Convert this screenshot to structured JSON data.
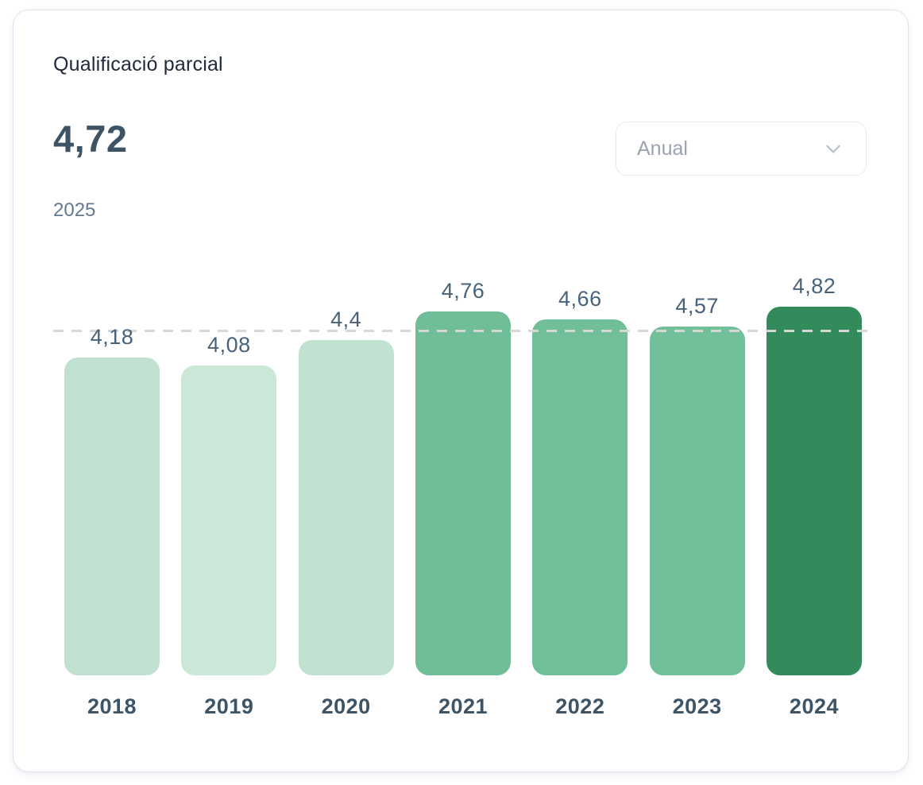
{
  "card": {
    "title": "Qualificació parcial",
    "summary": {
      "score": "4,72",
      "year": "2025"
    },
    "period_filter": {
      "selected": "Anual",
      "icon": "chevron-down-icon"
    }
  },
  "colors": {
    "card_border": "#dde3ee",
    "title_text": "#212b3b",
    "score_text": "#3d5366",
    "muted_text": "#64798f",
    "dropdown_text": "#9aa2ae",
    "value_label_text": "#47637c",
    "axis_label_text": "#3d5366",
    "reference_line": "#d6d8d7",
    "light_green": "#c0e1d0",
    "medium_green": "#70bf98",
    "dark_green": "#338a5b"
  },
  "chart_data": {
    "type": "bar",
    "title": "Qualificació parcial",
    "categories": [
      "2018",
      "2019",
      "2020",
      "2021",
      "2022",
      "2023",
      "2024"
    ],
    "values": [
      4.18,
      4.08,
      4.4,
      4.76,
      4.66,
      4.57,
      4.82
    ],
    "value_labels": [
      "4,18",
      "4,08",
      "4,4",
      "4,76",
      "4,66",
      "4,57",
      "4,82"
    ],
    "bar_colors": [
      "#c0e1d0",
      "#cbe7d8",
      "#c1e2d1",
      "#6fbe97",
      "#71bf98",
      "#72c099",
      "#338a5b"
    ],
    "reference_line": 4.5,
    "xlabel": "",
    "ylabel": "",
    "ylim": [
      0,
      5
    ],
    "grid": false,
    "legend": false,
    "value_axis_visible": false
  }
}
